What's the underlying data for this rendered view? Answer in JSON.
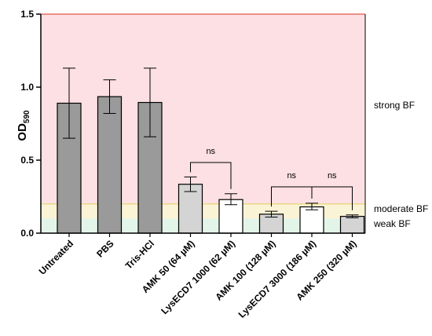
{
  "chart_data": {
    "type": "bar",
    "ylabel": "OD",
    "ylabel_subscript": "590",
    "ylim": [
      0,
      1.5
    ],
    "yticks": [
      "0.0",
      "0.5",
      "1.0",
      "1.5"
    ],
    "categories": [
      "Untreated",
      "PBS",
      "Tris-HCl",
      "AMK 50 (64 µM)",
      "LysECD7 1000 (62 µM)",
      "AMK 100 (128 µM)",
      "LysECD7 3000 (186 µM)",
      "AMK 250 (320 µM)"
    ],
    "values": [
      0.89,
      0.935,
      0.895,
      0.335,
      0.23,
      0.13,
      0.18,
      0.115
    ],
    "error_low": [
      0.65,
      0.82,
      0.66,
      0.285,
      0.195,
      0.11,
      0.16,
      0.105
    ],
    "error_high": [
      1.13,
      1.05,
      1.13,
      0.385,
      0.27,
      0.15,
      0.205,
      0.125
    ],
    "bar_colors": [
      "#9a9a9a",
      "#9a9a9a",
      "#9a9a9a",
      "#d4d4d4",
      "#ffffff",
      "#d4d4d4",
      "#ffffff",
      "#d4d4d4"
    ],
    "zones": [
      {
        "label": "strong BF",
        "from": 0.2,
        "to": 1.5,
        "color": "#fde0e3",
        "line_color": "#e05a4a"
      },
      {
        "label": "moderate BF",
        "from": 0.1,
        "to": 0.2,
        "color": "#fbf3d6",
        "line_color": "#e3d36a"
      },
      {
        "label": "weak BF",
        "from": 0.0,
        "to": 0.1,
        "color": "#e3f5e8",
        "line_color": null
      }
    ],
    "brackets": [
      {
        "label": "ns",
        "from": 3,
        "to": 4
      },
      {
        "label": "ns",
        "from": 5,
        "to": 6
      },
      {
        "label": "ns",
        "from": 6,
        "to": 7
      }
    ],
    "grid": false,
    "legend": "none"
  }
}
